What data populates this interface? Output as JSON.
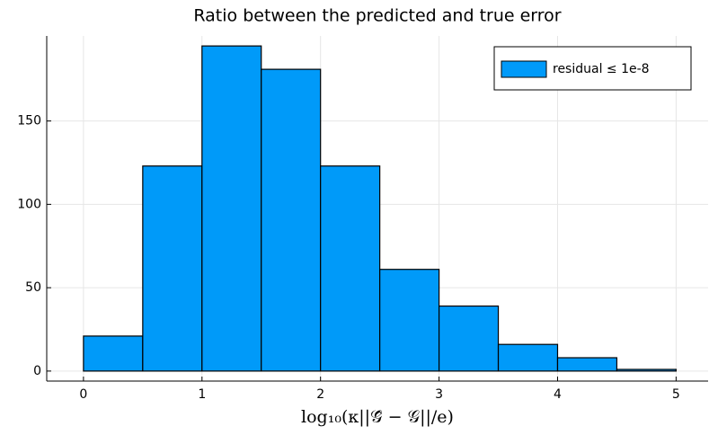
{
  "chart_data": {
    "type": "histogram",
    "title": "Ratio between the predicted and true error",
    "xlabel": "log₁₀(κ||𝒢̂ − 𝒢||/e)",
    "bins": [
      0,
      0.5,
      1,
      1.5,
      2,
      2.5,
      3,
      3.5,
      4,
      4.5,
      5
    ],
    "series": [
      {
        "name": "residual ≤ 1e-8",
        "color": "#009af9",
        "values": [
          21,
          123,
          195,
          181,
          123,
          61,
          39,
          16,
          8,
          1
        ]
      }
    ],
    "xlim": [
      -0.31,
      5.27
    ],
    "xticks": [
      0,
      1,
      2,
      3,
      4,
      5
    ],
    "ylim": [
      -6,
      201
    ],
    "yticks": [
      0,
      50,
      100,
      150
    ],
    "grid": true,
    "legend": "top-right"
  }
}
